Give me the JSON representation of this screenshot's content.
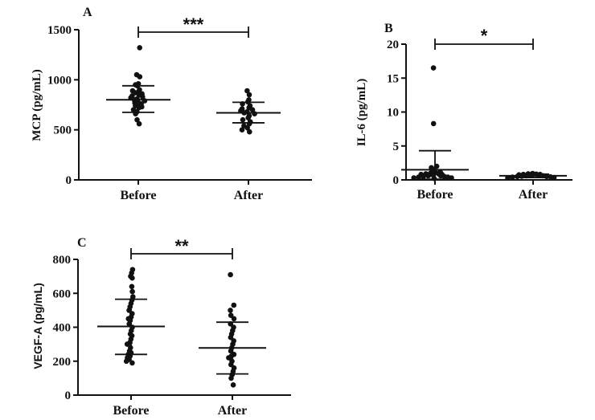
{
  "chart_data": [
    {
      "type": "scatter",
      "title": "A",
      "ylabel": "MCP (pg/mL)",
      "ylim": [
        0,
        1500
      ],
      "yticks": [
        0,
        500,
        1000,
        1500
      ],
      "categories": [
        "Before",
        "After"
      ],
      "significance": "***",
      "series": [
        {
          "category": "Before",
          "mean": 800,
          "sd_low": 675,
          "sd_high": 940,
          "values": [
            1320,
            1050,
            1030,
            960,
            950,
            940,
            900,
            890,
            880,
            870,
            860,
            850,
            840,
            830,
            820,
            810,
            800,
            790,
            780,
            770,
            760,
            750,
            740,
            730,
            720,
            700,
            680,
            660,
            600,
            560
          ]
        },
        {
          "category": "After",
          "mean": 670,
          "sd_low": 570,
          "sd_high": 775,
          "values": [
            890,
            850,
            800,
            780,
            760,
            740,
            720,
            710,
            700,
            690,
            680,
            670,
            660,
            640,
            620,
            600,
            580,
            560,
            540,
            520,
            500,
            480
          ]
        }
      ]
    },
    {
      "type": "scatter",
      "title": "B",
      "ylabel": "IL-6 (pg/mL)",
      "ylim": [
        0,
        20
      ],
      "yticks": [
        0,
        5,
        10,
        15,
        20
      ],
      "categories": [
        "Before",
        "After"
      ],
      "significance": "*",
      "series": [
        {
          "category": "Before",
          "mean": 1.5,
          "sd_low": 0.1,
          "sd_high": 4.3,
          "values": [
            16.5,
            8.3,
            2.0,
            1.8,
            1.5,
            1.3,
            1.2,
            1.1,
            1.0,
            0.9,
            0.9,
            0.8,
            0.8,
            0.7,
            0.7,
            0.6,
            0.6,
            0.5,
            0.5,
            0.4,
            0.4,
            0.3,
            0.3,
            0.2
          ]
        },
        {
          "category": "After",
          "mean": 0.6,
          "sd_low": 0.35,
          "sd_high": 0.85,
          "values": [
            0.95,
            0.9,
            0.85,
            0.8,
            0.8,
            0.75,
            0.7,
            0.7,
            0.65,
            0.6,
            0.6,
            0.55,
            0.5,
            0.5,
            0.45,
            0.4,
            0.35,
            0.3
          ]
        }
      ]
    },
    {
      "type": "scatter",
      "title": "C",
      "ylabel": "VEGF-A (pg/mL)",
      "ylim": [
        0,
        800
      ],
      "yticks": [
        0,
        200,
        400,
        600,
        800
      ],
      "categories": [
        "Before",
        "After"
      ],
      "significance": "**",
      "series": [
        {
          "category": "Before",
          "mean": 405,
          "sd_low": 240,
          "sd_high": 565,
          "values": [
            740,
            720,
            700,
            690,
            640,
            610,
            580,
            560,
            540,
            520,
            500,
            480,
            460,
            450,
            440,
            420,
            400,
            380,
            360,
            350,
            330,
            310,
            300,
            280,
            260,
            250,
            240,
            230,
            220,
            210,
            200,
            190
          ]
        },
        {
          "category": "After",
          "mean": 278,
          "sd_low": 125,
          "sd_high": 430,
          "values": [
            710,
            530,
            500,
            470,
            450,
            420,
            400,
            380,
            360,
            340,
            320,
            300,
            280,
            260,
            240,
            230,
            220,
            200,
            180,
            160,
            140,
            120,
            100,
            60
          ]
        }
      ]
    }
  ]
}
